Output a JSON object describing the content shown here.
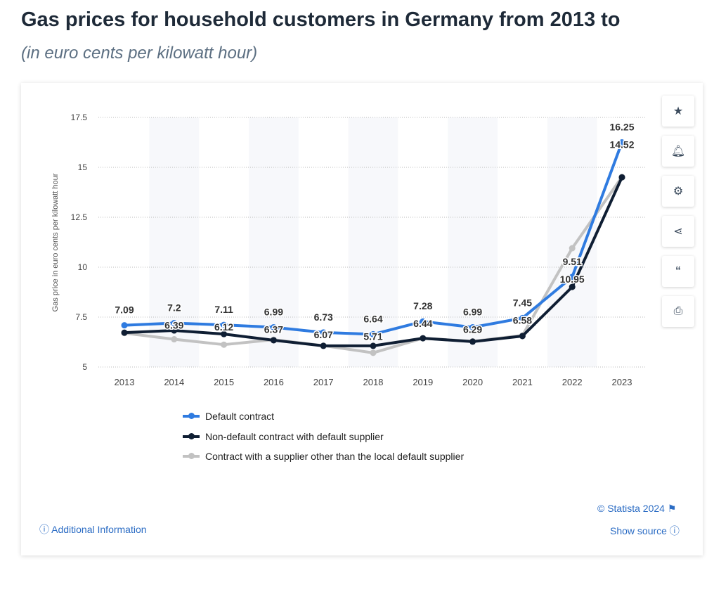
{
  "title": "Gas prices for household customers in Germany from 2013 to",
  "subtitle": "(in euro cents per kilowatt hour)",
  "chart_data": {
    "type": "line",
    "ylabel": "Gas price in euro cents per kilowatt hour",
    "ylim": [
      5,
      17.5
    ],
    "yticks": [
      "5",
      "7.5",
      "10",
      "12.5",
      "15",
      "17.5"
    ],
    "categories": [
      "2013",
      "2014",
      "2015",
      "2016",
      "2017",
      "2018",
      "2019",
      "2020",
      "2021",
      "2022",
      "2023"
    ],
    "grid": true,
    "legend_position": "bottom",
    "series": [
      {
        "name": "Default contract",
        "color": "#2f7be0",
        "values": [
          7.09,
          7.2,
          7.11,
          6.99,
          6.73,
          6.64,
          7.28,
          6.99,
          7.45,
          9.51,
          16.25
        ],
        "labels": [
          "7.09",
          "7.2",
          "7.11",
          "6.99",
          "6.73",
          "6.64",
          "7.28",
          "6.99",
          "7.45",
          "9.51",
          "16.25"
        ]
      },
      {
        "name": "Non-default contract with default supplier",
        "color": "#0f1e33",
        "values": [
          6.72,
          6.83,
          6.65,
          6.34,
          6.06,
          6.06,
          6.44,
          6.27,
          6.55,
          9.01,
          14.5
        ],
        "labels": []
      },
      {
        "name": "Contract with a supplier other than the local default supplier",
        "color": "#c2c2c2",
        "values": [
          6.7,
          6.39,
          6.12,
          6.37,
          6.07,
          5.71,
          6.44,
          6.29,
          6.58,
          10.95,
          14.52
        ],
        "labels": [
          "",
          "6.39",
          "6.12",
          "6.37",
          "6.07",
          "5.71",
          "6.44",
          "6.29",
          "6.58",
          "10.95",
          "14.52"
        ]
      }
    ]
  },
  "toolbar": [
    "star-icon",
    "bell-icon",
    "gear-icon",
    "share-icon",
    "quote-icon",
    "print-icon"
  ],
  "footer": {
    "additional_info": "Additional Information",
    "copyright": "© Statista 2024",
    "show_source": "Show source"
  }
}
